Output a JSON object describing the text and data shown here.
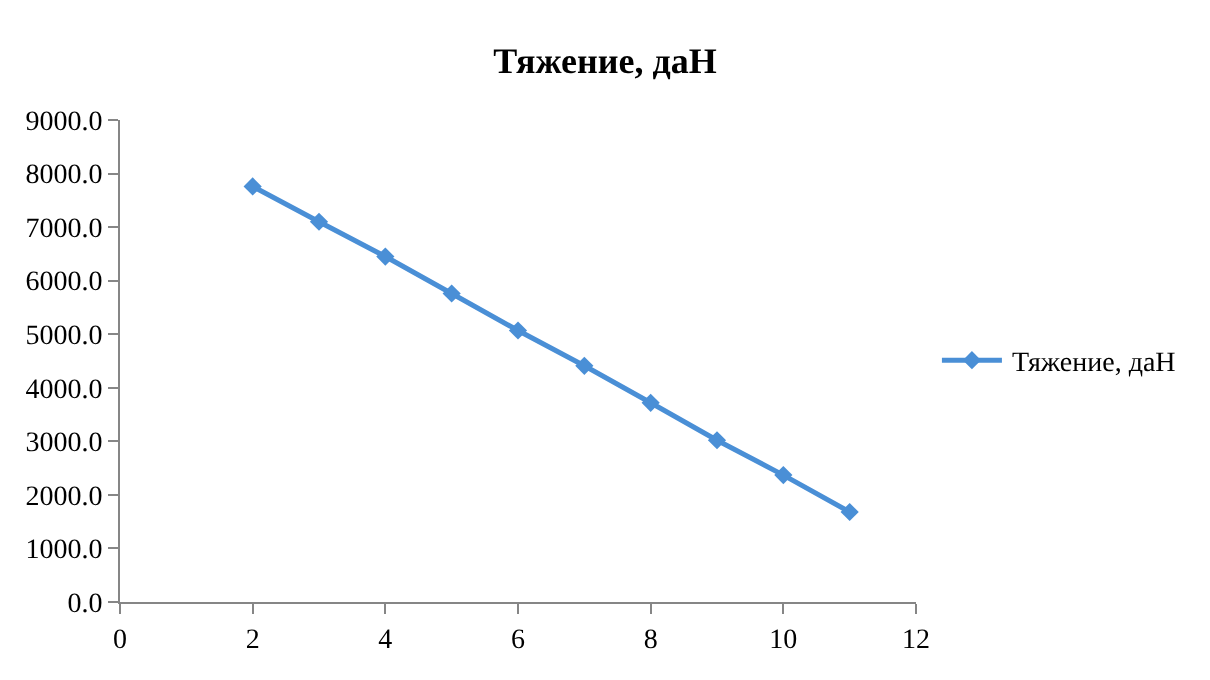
{
  "chart_data": {
    "type": "line",
    "title": "Тяжение, даН",
    "x": [
      2,
      3,
      4,
      5,
      6,
      7,
      8,
      9,
      10,
      11
    ],
    "series": [
      {
        "name": "Тяжение, даН",
        "color": "#4a8fd6",
        "values": [
          7760,
          7100,
          6450,
          5760,
          5070,
          4410,
          3720,
          3020,
          2370,
          1680
        ]
      }
    ],
    "xlim": [
      0,
      12
    ],
    "xticks": [
      0,
      2,
      4,
      6,
      8,
      10,
      12
    ],
    "ylim": [
      0,
      9000
    ],
    "yticks": [
      {
        "value": 0,
        "label": "0.0"
      },
      {
        "value": 1000,
        "label": "1000.0"
      },
      {
        "value": 2000,
        "label": "2000.0"
      },
      {
        "value": 3000,
        "label": "3000.0"
      },
      {
        "value": 4000,
        "label": "4000.0"
      },
      {
        "value": 5000,
        "label": "5000.0"
      },
      {
        "value": 6000,
        "label": "6000.0"
      },
      {
        "value": 7000,
        "label": "7000.0"
      },
      {
        "value": 8000,
        "label": "8000.0"
      },
      {
        "value": 9000,
        "label": "9000.0"
      }
    ],
    "legend": "right",
    "marker": "diamond",
    "line_style": "solid",
    "grid": false
  }
}
